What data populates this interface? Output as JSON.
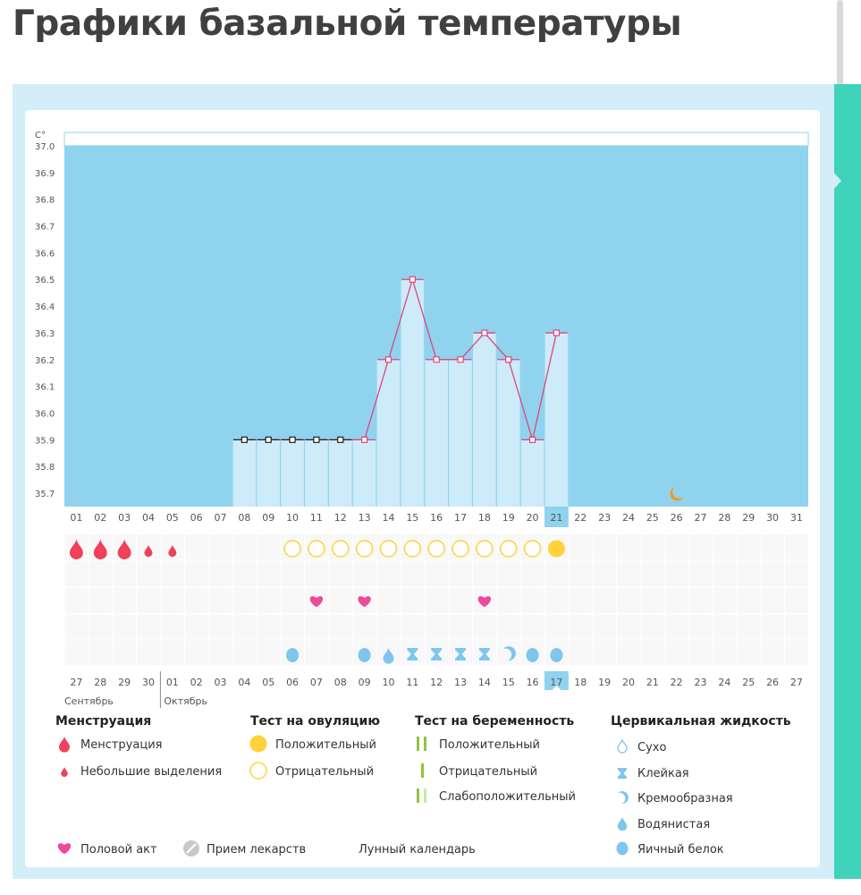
{
  "page_title": "Графики базальной температуры",
  "chart_data": {
    "type": "line",
    "yunit": "C°",
    "ylim": [
      35.7,
      37.0
    ],
    "yticks": [
      "37.0",
      "36.9",
      "36.8",
      "36.7",
      "36.6",
      "36.5",
      "36.4",
      "36.3",
      "36.2",
      "36.1",
      "36.0",
      "35.9",
      "35.8",
      "35.7"
    ],
    "days_top": [
      "01",
      "02",
      "03",
      "04",
      "05",
      "06",
      "07",
      "08",
      "09",
      "10",
      "11",
      "12",
      "13",
      "14",
      "15",
      "16",
      "17",
      "18",
      "19",
      "20",
      "21",
      "22",
      "23",
      "24",
      "25",
      "26",
      "27",
      "28",
      "29",
      "30",
      "31"
    ],
    "current_day_index": 20,
    "temperatures": [
      {
        "day": "08",
        "value": 35.9,
        "phase": "pre"
      },
      {
        "day": "09",
        "value": 35.9,
        "phase": "pre"
      },
      {
        "day": "10",
        "value": 35.9,
        "phase": "pre"
      },
      {
        "day": "11",
        "value": 35.9,
        "phase": "pre"
      },
      {
        "day": "12",
        "value": 35.9,
        "phase": "pre"
      },
      {
        "day": "13",
        "value": 35.9,
        "phase": "post"
      },
      {
        "day": "14",
        "value": 36.2,
        "phase": "post"
      },
      {
        "day": "15",
        "value": 36.5,
        "phase": "post"
      },
      {
        "day": "16",
        "value": 36.2,
        "phase": "post"
      },
      {
        "day": "17",
        "value": 36.2,
        "phase": "post"
      },
      {
        "day": "18",
        "value": 36.3,
        "phase": "post"
      },
      {
        "day": "19",
        "value": 36.2,
        "phase": "post"
      },
      {
        "day": "20",
        "value": 35.9,
        "phase": "post"
      },
      {
        "day": "21",
        "value": 36.3,
        "phase": "post"
      }
    ],
    "moon_day": "26",
    "menstruation": [
      {
        "day": "01",
        "type": "full"
      },
      {
        "day": "02",
        "type": "full"
      },
      {
        "day": "03",
        "type": "full"
      },
      {
        "day": "04",
        "type": "light"
      },
      {
        "day": "05",
        "type": "light"
      }
    ],
    "ovulation_tests": [
      {
        "day": "10",
        "result": "negative"
      },
      {
        "day": "11",
        "result": "negative"
      },
      {
        "day": "12",
        "result": "negative"
      },
      {
        "day": "13",
        "result": "negative"
      },
      {
        "day": "14",
        "result": "negative"
      },
      {
        "day": "15",
        "result": "negative"
      },
      {
        "day": "16",
        "result": "negative"
      },
      {
        "day": "17",
        "result": "negative"
      },
      {
        "day": "18",
        "result": "negative"
      },
      {
        "day": "19",
        "result": "negative"
      },
      {
        "day": "20",
        "result": "negative"
      },
      {
        "day": "21",
        "result": "positive"
      }
    ],
    "intercourse_days": [
      "11",
      "13",
      "18"
    ],
    "cervical_fluid": [
      {
        "day": "10",
        "type": "eggwhite"
      },
      {
        "day": "13",
        "type": "eggwhite"
      },
      {
        "day": "14",
        "type": "watery"
      },
      {
        "day": "15",
        "type": "sticky"
      },
      {
        "day": "16",
        "type": "sticky"
      },
      {
        "day": "17",
        "type": "sticky"
      },
      {
        "day": "18",
        "type": "sticky"
      },
      {
        "day": "19",
        "type": "creamy"
      },
      {
        "day": "20",
        "type": "eggwhite"
      },
      {
        "day": "21",
        "type": "eggwhite"
      }
    ],
    "cycle_days": [
      "27",
      "28",
      "29",
      "30",
      "01",
      "02",
      "03",
      "04",
      "05",
      "06",
      "07",
      "08",
      "09",
      "10",
      "11",
      "12",
      "13",
      "14",
      "15",
      "16",
      "17",
      "18",
      "19",
      "20",
      "21",
      "22",
      "23",
      "24",
      "25",
      "26",
      "27"
    ],
    "cycle_days_highlight": [
      4,
      5,
      11,
      12,
      17,
      18,
      24,
      25
    ],
    "month_prev": "Сентябрь",
    "month_next": "Октябрь"
  },
  "legend": {
    "menstruation": {
      "title": "Менструация",
      "items": [
        "Менструация",
        "Небольшие выделения"
      ]
    },
    "ovulation": {
      "title": "Тест на овуляцию",
      "items": [
        "Положительный",
        "Отрицательный"
      ]
    },
    "pregnancy": {
      "title": "Тест на беременность",
      "items": [
        "Положительный",
        "Отрицательный",
        "Слабоположительный"
      ]
    },
    "cervical": {
      "title": "Цервикальная жидкость",
      "items": [
        "Сухо",
        "Клейкая",
        "Кремообразная",
        "Водянистая",
        "Яичный белок"
      ]
    },
    "bottom": [
      "Половой акт",
      "Прием лекарств",
      "Лунный календарь"
    ]
  },
  "colors": {
    "plot_bg": "#8fd3ef",
    "bar": "#cdebf9",
    "line": "#e0457b",
    "marker_pre": "#222222",
    "blood": "#f0405a",
    "ovul_pos": "#ffd23c",
    "ovul_neg": "#ffd23c",
    "heart": "#ee4a9c",
    "fluid": "#7ec6ec",
    "preg_green": "#8ec63f",
    "preg_light": "#cde6a6",
    "moon": "#f39a1c",
    "pill": "#c8c8c8",
    "red_text": "#e0245e"
  }
}
